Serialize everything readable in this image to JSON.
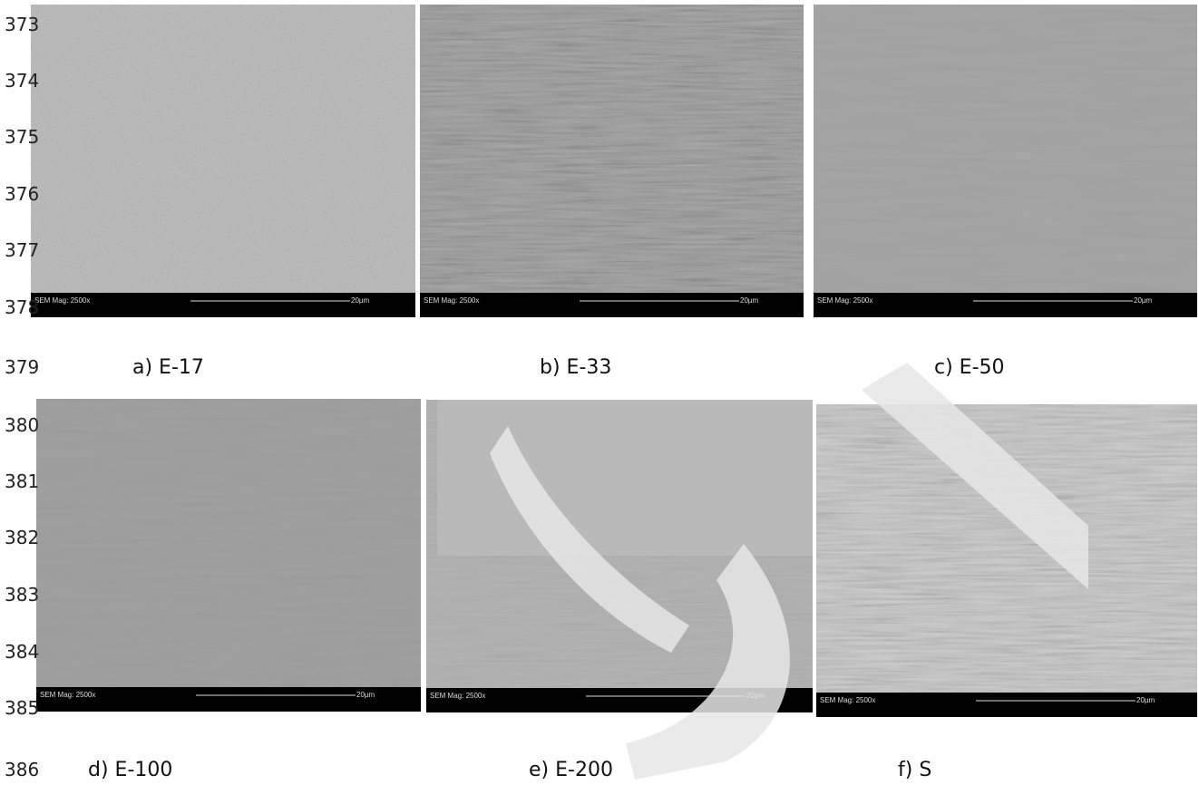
{
  "line_numbers": [
    "373",
    "374",
    "375",
    "376",
    "377",
    "378",
    "379",
    "380",
    "381",
    "382",
    "383",
    "384",
    "385",
    "386"
  ],
  "panels": [
    {
      "caption": "a) E-17",
      "mag": "SEM Mag: 2500x",
      "scale": "20µm"
    },
    {
      "caption": "b) E-33",
      "mag": "SEM Mag: 2500x",
      "scale": "20µm"
    },
    {
      "caption": "c) E-50",
      "mag": "SEM Mag: 2500x",
      "scale": "20µm"
    },
    {
      "caption": "d) E-100",
      "mag": "SEM Mag: 2500x",
      "scale": "20µm"
    },
    {
      "caption": "e) E-200",
      "mag": "SEM Mag: 2500x",
      "scale": "20µm"
    },
    {
      "caption": "f) S",
      "mag": "SEM Mag: 2500x",
      "scale": "20µm"
    }
  ]
}
